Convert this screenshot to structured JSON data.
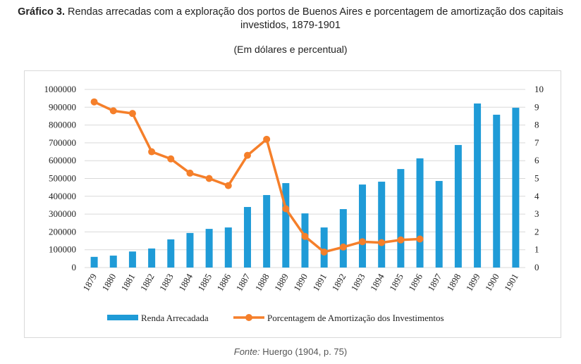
{
  "title_bold": "Gráfico 3.",
  "title": "Rendas arrecadas com a exploração dos portos de Buenos Aires e porcentagem de amortização dos capitais investidos, 1879-1901",
  "subtitle": "(Em dólares e percentual)",
  "source_label": "Fonte:",
  "source": "Huergo (1904, p. 75)",
  "chart_data": {
    "type": "bar+line",
    "categories": [
      "1879",
      "1880",
      "1881",
      "1882",
      "1883",
      "1884",
      "1885",
      "1886",
      "1887",
      "1888",
      "1889",
      "1890",
      "1891",
      "1892",
      "1893",
      "1894",
      "1895",
      "1896",
      "1897",
      "1898",
      "1899",
      "1900",
      "1901"
    ],
    "series": [
      {
        "name": "Renda Arrecadada",
        "type": "bar",
        "axis": "left",
        "color": "#1f9bd7",
        "values": [
          60000,
          67000,
          90000,
          107000,
          158000,
          194000,
          217000,
          225000,
          340000,
          407000,
          474000,
          304000,
          225000,
          328000,
          466000,
          482000,
          553000,
          613000,
          486000,
          688000,
          921000,
          858000,
          897000
        ]
      },
      {
        "name": "Porcentagem de Amortização dos Investimentos",
        "type": "line",
        "axis": "right",
        "color": "#f57f2a",
        "values": [
          9.3,
          8.8,
          8.65,
          6.5,
          6.1,
          5.3,
          5.0,
          4.6,
          6.3,
          7.2,
          3.3,
          1.75,
          0.87,
          1.15,
          1.45,
          1.4,
          1.55,
          1.6,
          null,
          null,
          null,
          null,
          null
        ]
      }
    ],
    "y_left": {
      "range": [
        0,
        1000000
      ],
      "ticks": [
        "0",
        "100000",
        "200000",
        "300000",
        "400000",
        "500000",
        "600000",
        "700000",
        "800000",
        "900000",
        "1000000"
      ]
    },
    "y_right": {
      "range": [
        0,
        10
      ],
      "ticks": [
        "0",
        "1",
        "2",
        "3",
        "4",
        "5",
        "6",
        "7",
        "8",
        "9",
        "10"
      ]
    },
    "grid": true,
    "legend": "bottom"
  }
}
